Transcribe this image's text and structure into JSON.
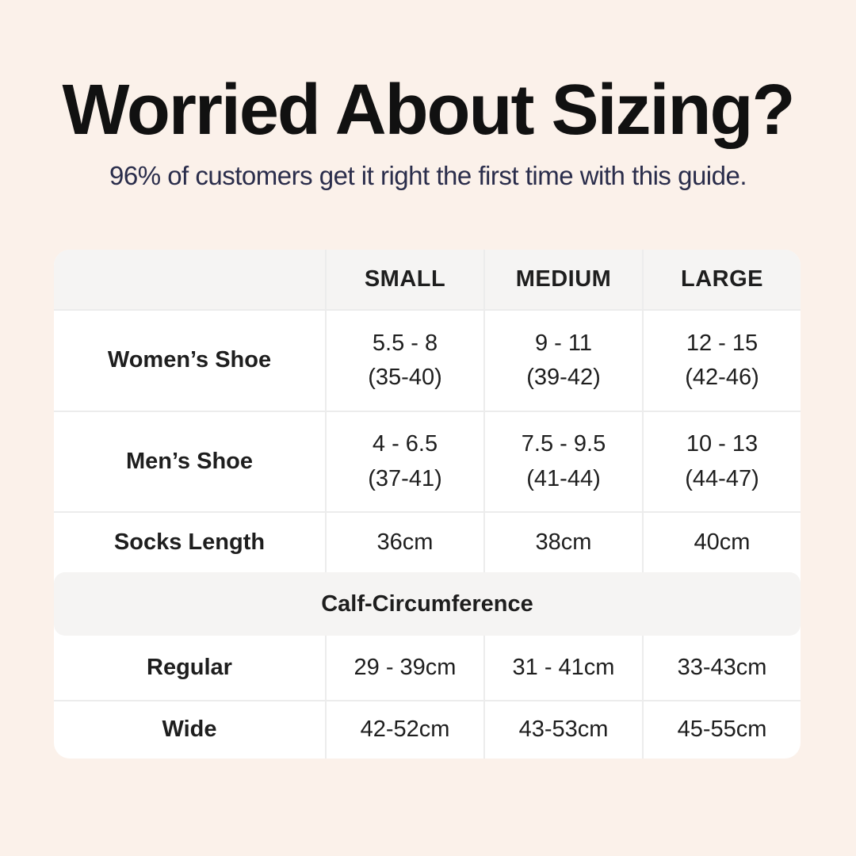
{
  "page": {
    "title": "Worried About Sizing?",
    "subtitle": "96% of customers get it right the first time with this guide."
  },
  "table": {
    "columns": [
      "SMALL",
      "MEDIUM",
      "LARGE"
    ],
    "rows": [
      {
        "label": "Women’s Shoe",
        "cells": [
          [
            "5.5 - 8",
            "(35-40)"
          ],
          [
            "9 - 11",
            "(39-42)"
          ],
          [
            "12 - 15",
            "(42-46)"
          ]
        ]
      },
      {
        "label": "Men’s Shoe",
        "cells": [
          [
            "4 - 6.5",
            "(37-41)"
          ],
          [
            "7.5 - 9.5",
            "(41-44)"
          ],
          [
            "10 - 13",
            "(44-47)"
          ]
        ]
      },
      {
        "label": "Socks Length",
        "cells": [
          [
            "36cm"
          ],
          [
            "38cm"
          ],
          [
            "40cm"
          ]
        ]
      }
    ],
    "section_header": "Calf-Circumference",
    "calf_rows": [
      {
        "label": "Regular",
        "cells": [
          [
            "29 - 39cm"
          ],
          [
            "31 - 41cm"
          ],
          [
            "33-43cm"
          ]
        ]
      },
      {
        "label": "Wide",
        "cells": [
          [
            "42-52cm"
          ],
          [
            "43-53cm"
          ],
          [
            "45-55cm"
          ]
        ]
      }
    ]
  },
  "colors": {
    "background": "#FBF1EA",
    "card": "#FFFFFF",
    "band": "#F5F4F3",
    "border": "#ECECEC",
    "title_text": "#111111",
    "subtitle_text": "#2A2D4B",
    "table_text": "#1E1E1E"
  }
}
